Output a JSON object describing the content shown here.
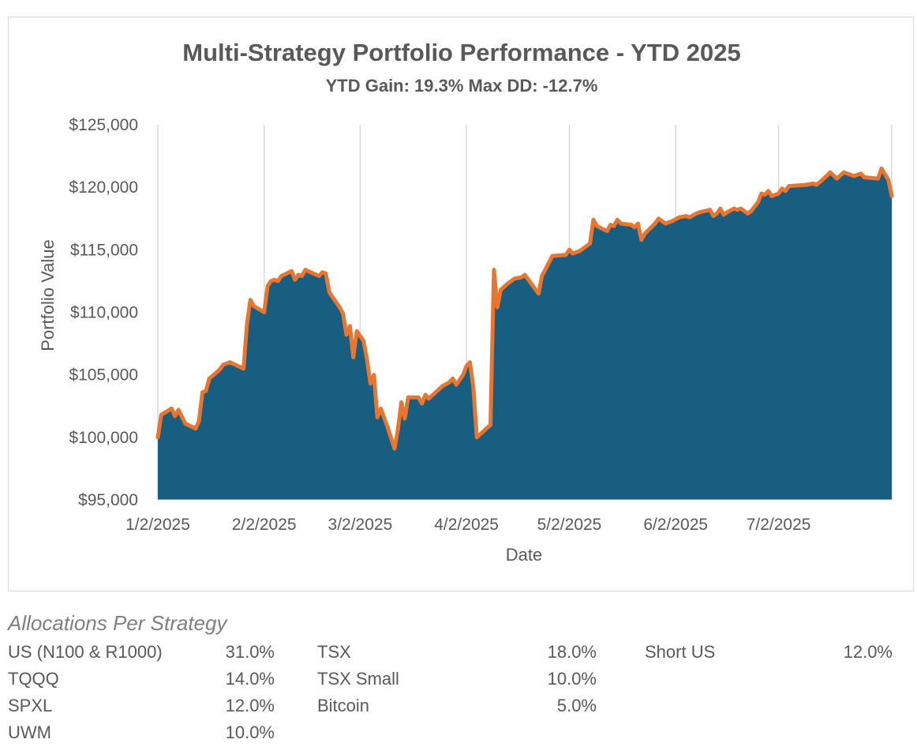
{
  "chart_data": {
    "type": "area",
    "title": "Multi-Strategy Portfolio Performance - YTD 2025",
    "subtitle": "YTD Gain: 19.3%  Max DD: -12.7%",
    "xlabel": "Date",
    "ylabel": "Portfolio Value",
    "x_ticks": [
      "1/2/2025",
      "2/2/2025",
      "3/2/2025",
      "4/2/2025",
      "5/2/2025",
      "6/2/2025",
      "7/2/2025"
    ],
    "y_ticks": [
      "$95,000",
      "$100,000",
      "$105,000",
      "$110,000",
      "$115,000",
      "$120,000",
      "$125,000"
    ],
    "ylim": [
      95000,
      125000
    ],
    "xlim": [
      "2025-01-02",
      "2025-08-04"
    ],
    "grid": "vertical",
    "colors": {
      "fill": "#175e80",
      "line": "#e87631",
      "grid": "#d9d9d9",
      "text": "#595959"
    },
    "series": [
      {
        "points": [
          [
            "2025-01-02",
            100000
          ],
          [
            "2025-01-03",
            101800
          ],
          [
            "2025-01-06",
            102300
          ],
          [
            "2025-01-07",
            101700
          ],
          [
            "2025-01-08",
            102200
          ],
          [
            "2025-01-10",
            101100
          ],
          [
            "2025-01-13",
            100700
          ],
          [
            "2025-01-14",
            101300
          ],
          [
            "2025-01-15",
            103600
          ],
          [
            "2025-01-16",
            103700
          ],
          [
            "2025-01-17",
            104700
          ],
          [
            "2025-01-20",
            105400
          ],
          [
            "2025-01-21",
            105800
          ],
          [
            "2025-01-23",
            106000
          ],
          [
            "2025-01-27",
            105500
          ],
          [
            "2025-01-28",
            109100
          ],
          [
            "2025-01-29",
            111000
          ],
          [
            "2025-01-30",
            110500
          ],
          [
            "2025-02-02",
            110000
          ],
          [
            "2025-02-03",
            112100
          ],
          [
            "2025-02-04",
            112500
          ],
          [
            "2025-02-05",
            112600
          ],
          [
            "2025-02-06",
            112500
          ],
          [
            "2025-02-07",
            112900
          ],
          [
            "2025-02-10",
            113300
          ],
          [
            "2025-02-11",
            112600
          ],
          [
            "2025-02-12",
            113000
          ],
          [
            "2025-02-13",
            112900
          ],
          [
            "2025-02-14",
            113400
          ],
          [
            "2025-02-18",
            112900
          ],
          [
            "2025-02-19",
            113200
          ],
          [
            "2025-02-20",
            113100
          ],
          [
            "2025-02-21",
            111600
          ],
          [
            "2025-02-24",
            110400
          ],
          [
            "2025-02-25",
            109900
          ],
          [
            "2025-02-26",
            108200
          ],
          [
            "2025-02-27",
            108900
          ],
          [
            "2025-02-28",
            106400
          ],
          [
            "2025-03-01",
            108500
          ],
          [
            "2025-03-03",
            107700
          ],
          [
            "2025-03-04",
            106200
          ],
          [
            "2025-03-05",
            104300
          ],
          [
            "2025-03-06",
            105000
          ],
          [
            "2025-03-07",
            101600
          ],
          [
            "2025-03-08",
            102300
          ],
          [
            "2025-03-10",
            100800
          ],
          [
            "2025-03-12",
            99100
          ],
          [
            "2025-03-13",
            100600
          ],
          [
            "2025-03-14",
            102800
          ],
          [
            "2025-03-15",
            101500
          ],
          [
            "2025-03-16",
            103200
          ],
          [
            "2025-03-19",
            103200
          ],
          [
            "2025-03-20",
            102700
          ],
          [
            "2025-03-21",
            103400
          ],
          [
            "2025-03-22",
            103100
          ],
          [
            "2025-03-24",
            103600
          ],
          [
            "2025-03-26",
            104100
          ],
          [
            "2025-03-28",
            104400
          ],
          [
            "2025-03-29",
            104700
          ],
          [
            "2025-03-30",
            104200
          ],
          [
            "2025-04-01",
            105000
          ],
          [
            "2025-04-02",
            105700
          ],
          [
            "2025-04-03",
            106000
          ],
          [
            "2025-04-04",
            104000
          ],
          [
            "2025-04-05",
            100000
          ],
          [
            "2025-04-09",
            101000
          ],
          [
            "2025-04-10",
            113400
          ],
          [
            "2025-04-11",
            110400
          ],
          [
            "2025-04-12",
            111800
          ],
          [
            "2025-04-14",
            112300
          ],
          [
            "2025-04-16",
            112700
          ],
          [
            "2025-04-18",
            112800
          ],
          [
            "2025-04-19",
            113000
          ],
          [
            "2025-04-23",
            111500
          ],
          [
            "2025-04-24",
            112900
          ],
          [
            "2025-04-27",
            114500
          ],
          [
            "2025-05-01",
            114600
          ],
          [
            "2025-05-02",
            115000
          ],
          [
            "2025-05-03",
            114700
          ],
          [
            "2025-05-05",
            114900
          ],
          [
            "2025-05-07",
            115300
          ],
          [
            "2025-05-08",
            115500
          ],
          [
            "2025-05-09",
            117400
          ],
          [
            "2025-05-10",
            116900
          ],
          [
            "2025-05-13",
            116500
          ],
          [
            "2025-05-14",
            117000
          ],
          [
            "2025-05-15",
            116900
          ],
          [
            "2025-05-16",
            117400
          ],
          [
            "2025-05-17",
            117100
          ],
          [
            "2025-05-20",
            117000
          ],
          [
            "2025-05-21",
            116800
          ],
          [
            "2025-05-22",
            117100
          ],
          [
            "2025-05-23",
            115800
          ],
          [
            "2025-05-24",
            116300
          ],
          [
            "2025-05-27",
            117100
          ],
          [
            "2025-05-28",
            117500
          ],
          [
            "2025-05-30",
            117100
          ],
          [
            "2025-06-01",
            117300
          ],
          [
            "2025-06-03",
            117600
          ],
          [
            "2025-06-05",
            117700
          ],
          [
            "2025-06-06",
            117600
          ],
          [
            "2025-06-08",
            117900
          ],
          [
            "2025-06-09",
            118000
          ],
          [
            "2025-06-12",
            118200
          ],
          [
            "2025-06-13",
            117700
          ],
          [
            "2025-06-14",
            117900
          ],
          [
            "2025-06-15",
            118300
          ],
          [
            "2025-06-16",
            117800
          ],
          [
            "2025-06-17",
            118000
          ],
          [
            "2025-06-19",
            118300
          ],
          [
            "2025-06-20",
            118200
          ],
          [
            "2025-06-21",
            118300
          ],
          [
            "2025-06-23",
            117900
          ],
          [
            "2025-06-24",
            118100
          ],
          [
            "2025-06-26",
            118800
          ],
          [
            "2025-06-27",
            119500
          ],
          [
            "2025-06-28",
            119400
          ],
          [
            "2025-06-29",
            119700
          ],
          [
            "2025-06-30",
            119300
          ],
          [
            "2025-07-02",
            119500
          ],
          [
            "2025-07-03",
            119900
          ],
          [
            "2025-07-04",
            119700
          ],
          [
            "2025-07-05",
            120100
          ],
          [
            "2025-07-10",
            120200
          ],
          [
            "2025-07-12",
            120300
          ],
          [
            "2025-07-13",
            120200
          ],
          [
            "2025-07-14",
            120400
          ],
          [
            "2025-07-16",
            120900
          ],
          [
            "2025-07-17",
            121200
          ],
          [
            "2025-07-19",
            120700
          ],
          [
            "2025-07-21",
            121200
          ],
          [
            "2025-07-24",
            120900
          ],
          [
            "2025-07-26",
            121100
          ],
          [
            "2025-07-27",
            120800
          ],
          [
            "2025-07-31",
            120700
          ],
          [
            "2025-08-01",
            121500
          ],
          [
            "2025-08-03",
            120600
          ],
          [
            "2025-08-04",
            119300
          ]
        ]
      }
    ]
  },
  "allocations": {
    "heading": "Allocations Per Strategy",
    "columns": [
      [
        {
          "label": "US (N100 & R1000)",
          "value": "31.0%"
        },
        {
          "label": "TQQQ",
          "value": "14.0%"
        },
        {
          "label": "SPXL",
          "value": "12.0%"
        },
        {
          "label": "UWM",
          "value": "10.0%"
        }
      ],
      [
        {
          "label": "TSX",
          "value": "18.0%"
        },
        {
          "label": "TSX Small",
          "value": "10.0%"
        },
        {
          "label": "Bitcoin",
          "value": "5.0%"
        }
      ],
      [
        {
          "label": "Short US",
          "value": "12.0%"
        }
      ]
    ]
  }
}
